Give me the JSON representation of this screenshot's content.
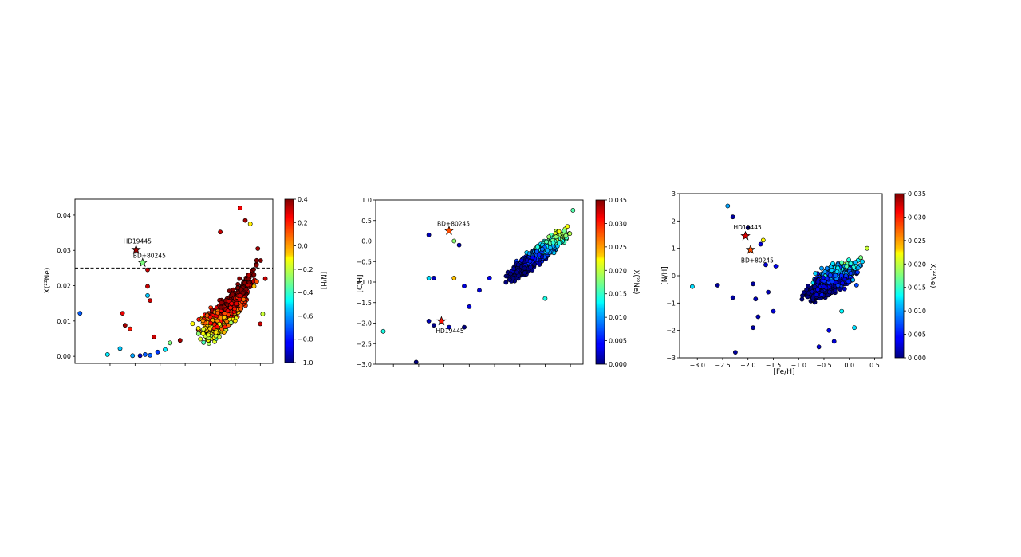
{
  "chart_data": [
    {
      "type": "scatter",
      "xlabel": "",
      "ylabel": "X(²²Ne)",
      "xlim": [
        -3.2,
        0.75
      ],
      "ylim": [
        -0.002,
        0.0445
      ],
      "yticks": [
        "0.00",
        "0.01",
        "0.02",
        "0.03",
        "0.04"
      ],
      "ytick_values": [
        0.0,
        0.01,
        0.02,
        0.03,
        0.04
      ],
      "color_by": "[N/H]",
      "colorbar": {
        "label": "[N/H]",
        "range": [
          -1.0,
          0.4
        ],
        "ticks": [
          "0.4",
          "0.2",
          "0.0",
          "−0.2",
          "−0.4",
          "−0.6",
          "−0.8",
          "−1.0"
        ],
        "tick_values": [
          0.4,
          0.2,
          0.0,
          -0.2,
          -0.4,
          -0.6,
          -0.8,
          -1.0
        ]
      },
      "reference_line": {
        "y": 0.025,
        "style": "dashed"
      },
      "stars": [
        {
          "name": "HD19445",
          "x": -1.98,
          "y": 0.0302,
          "color_value": 0.35
        },
        {
          "name": "BD+80245",
          "x": -1.85,
          "y": 0.0265,
          "color_value": -0.3
        }
      ],
      "points": [
        [
          -3.1,
          0.0122,
          -0.7
        ],
        [
          -2.55,
          0.0005,
          -0.5
        ],
        [
          -2.3,
          0.0022,
          -0.55
        ],
        [
          -2.25,
          0.0122,
          0.25
        ],
        [
          -2.2,
          0.0088,
          0.35
        ],
        [
          -2.1,
          0.0078,
          0.2
        ],
        [
          -2.05,
          0.0002,
          -0.6
        ],
        [
          -1.9,
          0.0002,
          -0.9
        ],
        [
          -1.8,
          0.0005,
          -0.7
        ],
        [
          -1.75,
          0.0245,
          0.3
        ],
        [
          -1.75,
          0.0198,
          0.3
        ],
        [
          -1.75,
          0.0172,
          -0.55
        ],
        [
          -1.7,
          0.0158,
          0.3
        ],
        [
          -1.62,
          0.0055,
          0.3
        ],
        [
          -1.7,
          0.0003,
          -0.7
        ],
        [
          -1.55,
          0.0012,
          -0.75
        ],
        [
          -1.4,
          0.0019,
          -0.5
        ],
        [
          -1.3,
          0.0038,
          -0.3
        ],
        [
          -1.1,
          0.0045,
          0.35
        ],
        [
          -0.3,
          0.0352,
          0.3
        ],
        [
          0.1,
          0.042,
          0.25
        ],
        [
          0.2,
          0.0385,
          0.35
        ],
        [
          0.3,
          0.0375,
          -0.1
        ],
        [
          0.45,
          0.0305,
          0.35
        ],
        [
          0.5,
          0.0092,
          0.3
        ],
        [
          0.55,
          0.012,
          -0.2
        ],
        [
          0.6,
          0.022,
          0.3
        ]
      ]
    },
    {
      "type": "scatter",
      "xlabel": "",
      "ylabel": "[C/H]",
      "xlim": [
        -3.35,
        0.75
      ],
      "ylim": [
        -3.0,
        1.0
      ],
      "yticks": [
        "1.0",
        "0.5",
        "0.0",
        "−0.5",
        "−1.0",
        "−1.5",
        "−2.0",
        "−2.5",
        "−3.0"
      ],
      "ytick_values": [
        1.0,
        0.5,
        0.0,
        -0.5,
        -1.0,
        -1.5,
        -2.0,
        -2.5,
        -3.0
      ],
      "color_by": "X(²²Ne)",
      "colorbar": {
        "label": "X(²²Ne)",
        "range": [
          0.0,
          0.035
        ],
        "ticks": [
          "0.035",
          "0.030",
          "0.025",
          "0.020",
          "0.015",
          "0.010",
          "0.005",
          "0.000"
        ],
        "tick_values": [
          0.035,
          0.03,
          0.025,
          0.02,
          0.015,
          0.01,
          0.005,
          0.0
        ]
      },
      "stars": [
        {
          "name": "BD+80245",
          "x": -1.9,
          "y": 0.25,
          "color_value": 0.028
        },
        {
          "name": "HD19445",
          "x": -2.05,
          "y": -1.95,
          "color_value": 0.03
        }
      ],
      "points": [
        [
          -3.2,
          -2.2,
          0.014
        ],
        [
          -2.55,
          -2.95,
          0.0
        ],
        [
          -2.3,
          0.15,
          0.002
        ],
        [
          -2.3,
          -0.9,
          0.012
        ],
        [
          -2.2,
          -0.9,
          0.002
        ],
        [
          -2.2,
          -2.05,
          0.0
        ],
        [
          -2.3,
          -1.95,
          0.002
        ],
        [
          -1.8,
          0.0,
          0.018
        ],
        [
          -1.7,
          -0.1,
          0.002
        ],
        [
          -1.8,
          -0.9,
          0.024
        ],
        [
          -1.9,
          -2.1,
          0.002
        ],
        [
          -1.6,
          -2.1,
          0.0
        ],
        [
          -1.6,
          -1.1,
          0.003
        ],
        [
          -1.5,
          -1.6,
          0.003
        ],
        [
          -1.3,
          -1.2,
          0.003
        ],
        [
          -1.1,
          -0.9,
          0.004
        ],
        [
          0.0,
          -1.4,
          0.014
        ],
        [
          0.55,
          0.75,
          0.016
        ]
      ]
    },
    {
      "type": "scatter",
      "xlabel": "[Fe/H]",
      "ylabel": "[N/H]",
      "xlim": [
        -3.35,
        0.65
      ],
      "ylim": [
        -3.0,
        3.0
      ],
      "xticks": [
        "−3.0",
        "−2.5",
        "−2.0",
        "−1.5",
        "−1.0",
        "−0.5",
        "0.0",
        "0.5"
      ],
      "xtick_values": [
        -3.0,
        -2.5,
        -2.0,
        -1.5,
        -1.0,
        -0.5,
        0.0,
        0.5
      ],
      "yticks": [
        "3",
        "2",
        "1",
        "0",
        "−1",
        "−2",
        "−3"
      ],
      "ytick_values": [
        3,
        2,
        1,
        0,
        -1,
        -2,
        -3
      ],
      "color_by": "X(²²Ne)",
      "colorbar": {
        "label": "X(²²Ne)",
        "range": [
          0.0,
          0.035
        ],
        "ticks": [
          "0.035",
          "0.030",
          "0.025",
          "0.020",
          "0.015",
          "0.010",
          "0.005",
          "0.000"
        ],
        "tick_values": [
          0.035,
          0.03,
          0.025,
          0.02,
          0.015,
          0.01,
          0.005,
          0.0
        ]
      },
      "stars": [
        {
          "name": "HD19445",
          "x": -2.05,
          "y": 1.45,
          "color_value": 0.032
        },
        {
          "name": "BD+80245",
          "x": -1.95,
          "y": 0.95,
          "color_value": 0.028
        }
      ],
      "points": [
        [
          -3.1,
          -0.4,
          0.012
        ],
        [
          -2.4,
          2.55,
          0.01
        ],
        [
          -2.3,
          2.15,
          0.001
        ],
        [
          -2.0,
          1.75,
          0.0
        ],
        [
          -1.7,
          1.3,
          0.022
        ],
        [
          -1.75,
          1.15,
          0.003
        ],
        [
          -2.25,
          -2.8,
          0.001
        ],
        [
          -2.6,
          -0.35,
          0.001
        ],
        [
          -2.3,
          -0.8,
          0.001
        ],
        [
          -1.9,
          -0.3,
          0.001
        ],
        [
          -1.85,
          -0.85,
          0.002
        ],
        [
          -1.8,
          -1.5,
          0.002
        ],
        [
          -1.9,
          -1.9,
          0.001
        ],
        [
          -1.6,
          -0.6,
          0.002
        ],
        [
          -1.5,
          -1.3,
          0.003
        ],
        [
          -1.65,
          0.4,
          0.003
        ],
        [
          -1.45,
          0.35,
          0.004
        ],
        [
          -0.6,
          -2.6,
          0.003
        ],
        [
          -0.3,
          -2.4,
          0.003
        ],
        [
          -0.4,
          -2.0,
          0.004
        ],
        [
          0.1,
          -1.9,
          0.012
        ],
        [
          -0.15,
          -1.3,
          0.013
        ],
        [
          0.35,
          1.0,
          0.02
        ]
      ]
    }
  ]
}
